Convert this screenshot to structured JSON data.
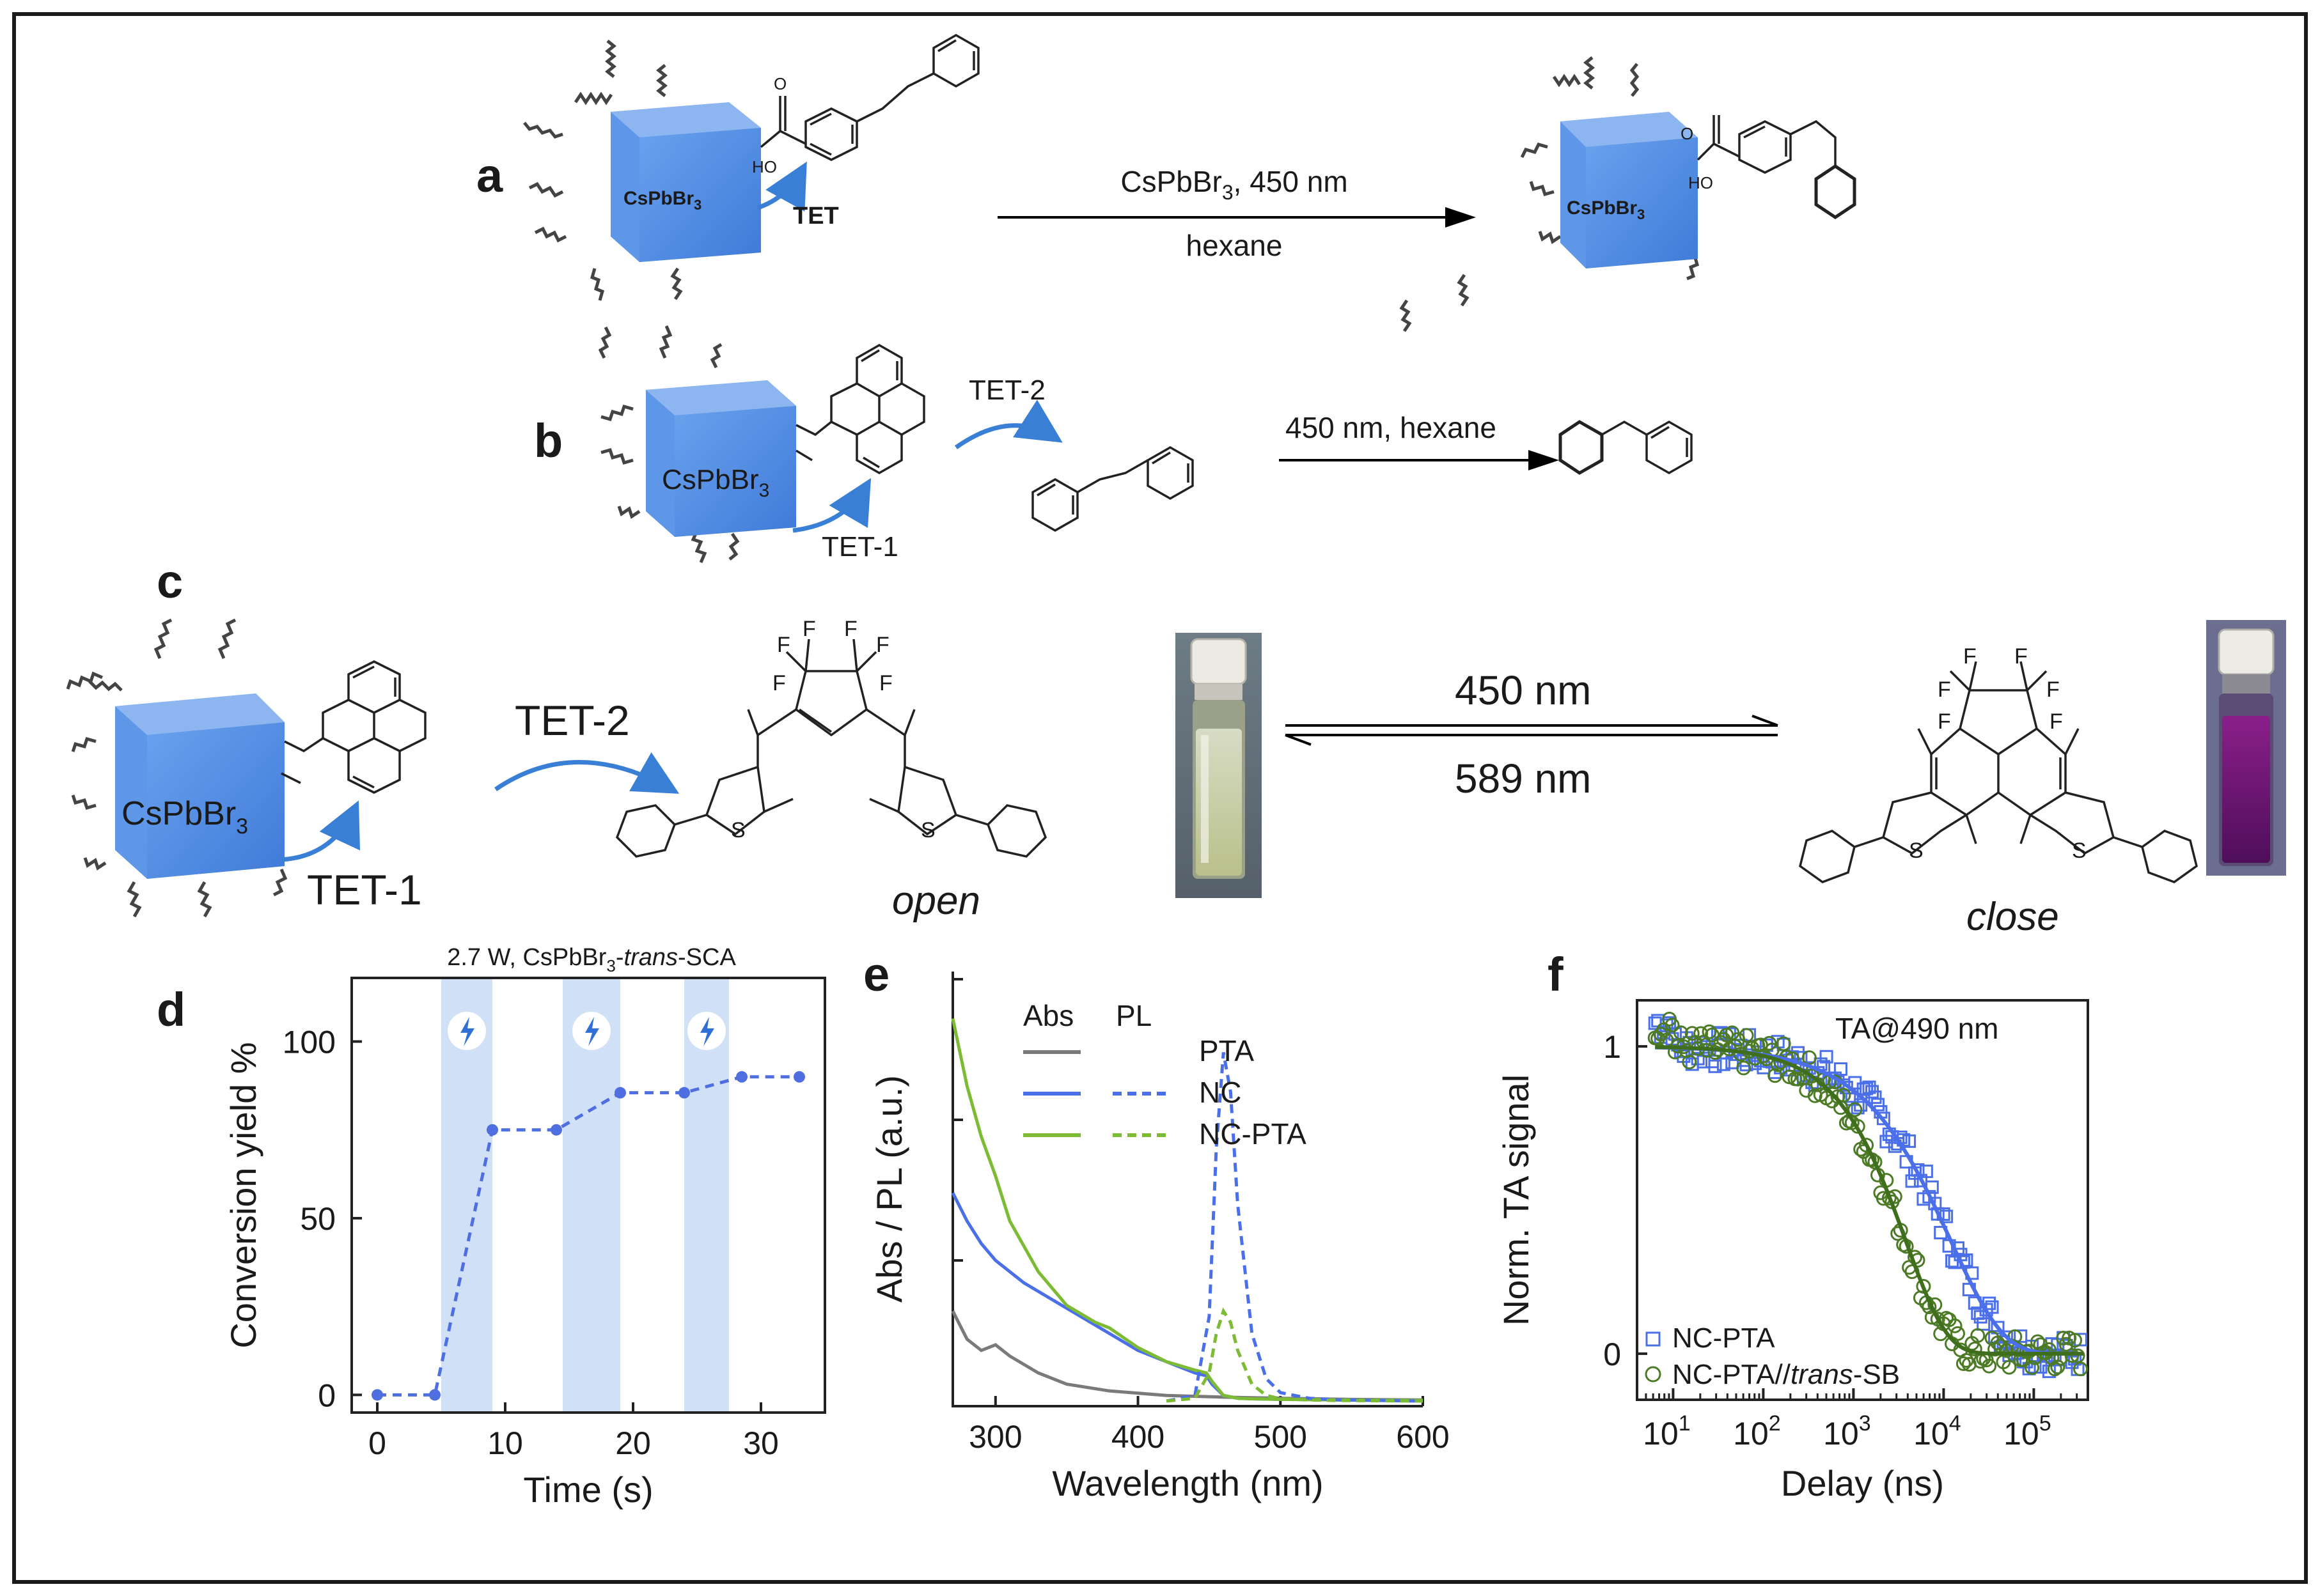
{
  "panels": {
    "a": {
      "label": "a",
      "nc": "CsPbBr",
      "nc_sub": "3",
      "tet": "TET",
      "ho": "HO",
      "o": "O",
      "cond_top": "CsPbBr",
      "cond_top_sub": "3",
      "cond_top_tail": ", 450 nm",
      "cond_bottom": "hexane",
      "product_nc": "CsPbBr",
      "product_nc_sub": "3",
      "product_ho": "HO",
      "product_o": "O"
    },
    "b": {
      "label": "b",
      "nc": "CsPbBr",
      "nc_sub": "3",
      "tet1": "TET-1",
      "tet2": "TET-2",
      "cond": "450 nm, hexane"
    },
    "c": {
      "label": "c",
      "nc": "CsPbBr",
      "nc_sub": "3",
      "tet1": "TET-1",
      "tet2": "TET-2",
      "f": "F",
      "s": "S",
      "forward": "450 nm",
      "backward": "589 nm",
      "open": "open",
      "close": "close",
      "forward_color": "#1f77b4",
      "backward_color": "#f08a3c"
    },
    "d": {
      "label": "d",
      "title_pre": "2.7 W, CsPbBr",
      "title_sub": "3",
      "title_mid": "-",
      "title_it": "trans",
      "title_post": "-SCA"
    },
    "e": {
      "label": "e"
    },
    "f": {
      "label": "f"
    }
  },
  "chart_data": [
    {
      "id": "d",
      "type": "line",
      "xlabel": "Time (s)",
      "ylabel": "Conversion yield %",
      "xlim": [
        -2,
        35
      ],
      "ylim": [
        -5,
        118
      ],
      "xticks": [
        0,
        10,
        20,
        30
      ],
      "yticks": [
        0,
        50,
        100
      ],
      "x": [
        0,
        4.5,
        9,
        14,
        19,
        24,
        28.5,
        33
      ],
      "y": [
        0,
        0,
        75,
        75,
        85.5,
        85.5,
        90,
        90
      ],
      "irradiation_windows": [
        [
          5,
          9
        ],
        [
          14.5,
          19
        ],
        [
          24,
          27.5
        ]
      ],
      "series_color": "#4f6fe0",
      "shade_color": "#cfe0f7"
    },
    {
      "id": "e",
      "type": "line",
      "xlabel": "Wavelength (nm)",
      "ylabel": "Abs / PL (a.u.)",
      "xlim": [
        270,
        600
      ],
      "xticks": [
        300,
        400,
        500,
        600
      ],
      "legend": {
        "abs_header": "Abs",
        "pl_header": "PL",
        "entries": [
          "PTA",
          "NC",
          "NC-PTA"
        ]
      },
      "series": [
        {
          "name": "PTA Abs",
          "color": "#7a7a7a",
          "dash": false,
          "x": [
            270,
            280,
            290,
            300,
            310,
            330,
            350,
            380,
            420,
            460,
            500,
            550,
            600
          ],
          "y": [
            0.16,
            0.11,
            0.09,
            0.1,
            0.08,
            0.05,
            0.03,
            0.018,
            0.01,
            0.007,
            0.005,
            0.003,
            0.002
          ]
        },
        {
          "name": "NC Abs",
          "color": "#4a6fe8",
          "dash": false,
          "x": [
            270,
            280,
            290,
            300,
            320,
            340,
            360,
            380,
            400,
            420,
            440,
            448,
            452,
            460,
            470,
            480,
            500,
            550,
            600
          ],
          "y": [
            0.37,
            0.32,
            0.28,
            0.25,
            0.21,
            0.18,
            0.15,
            0.12,
            0.09,
            0.07,
            0.05,
            0.045,
            0.03,
            0.01,
            0.005,
            0.004,
            0.003,
            0.002,
            0.001
          ]
        },
        {
          "name": "NC-PTA Abs",
          "color": "#7dbb34",
          "dash": false,
          "x": [
            270,
            280,
            290,
            300,
            310,
            330,
            350,
            370,
            380,
            400,
            420,
            440,
            448,
            452,
            460,
            470,
            480,
            500,
            550,
            600
          ],
          "y": [
            0.68,
            0.56,
            0.47,
            0.4,
            0.32,
            0.23,
            0.17,
            0.14,
            0.13,
            0.095,
            0.07,
            0.055,
            0.05,
            0.035,
            0.01,
            0.005,
            0.004,
            0.003,
            0.002,
            0.001
          ]
        },
        {
          "name": "NC PL",
          "color": "#4a6fe8",
          "dash": true,
          "x": [
            420,
            440,
            450,
            455,
            460,
            465,
            470,
            480,
            490,
            500,
            520,
            540,
            600
          ],
          "y": [
            0.0,
            0.01,
            0.15,
            0.45,
            0.62,
            0.55,
            0.35,
            0.12,
            0.04,
            0.015,
            0.005,
            0.002,
            0.0
          ]
        },
        {
          "name": "NC-PTA PL",
          "color": "#7dbb34",
          "dash": true,
          "x": [
            420,
            440,
            450,
            455,
            460,
            465,
            470,
            480,
            490,
            500,
            520,
            540,
            600
          ],
          "y": [
            0.0,
            0.005,
            0.05,
            0.12,
            0.16,
            0.14,
            0.09,
            0.03,
            0.01,
            0.004,
            0.002,
            0.001,
            0.0
          ]
        }
      ]
    },
    {
      "id": "f",
      "type": "scatter",
      "xlabel": "Delay (ns)",
      "ylabel": "Norm. TA signal",
      "xscale": "log",
      "xlim_log10": [
        0.6,
        5.6
      ],
      "ylim": [
        -0.15,
        1.15
      ],
      "yticks": [
        0,
        1
      ],
      "xticks_exp": [
        "1",
        "2",
        "3",
        "4",
        "5"
      ],
      "xtick_base": "10",
      "annotation": "TA@490 nm",
      "legend": [
        {
          "name": "NC-PTA",
          "marker": "square",
          "color": "#4a6fe8"
        },
        {
          "name_pre": "NC-PTA//",
          "name_it": "trans",
          "name_post": "-SB",
          "marker": "circle",
          "color": "#4c7a25"
        }
      ],
      "fits": [
        {
          "name": "NC-PTA fit",
          "color": "#4a6fe8",
          "tau_ns": 12000,
          "beta": 0.75
        },
        {
          "name": "NC-PTA//trans-SB fit",
          "color": "#3f6e1c",
          "tau_ns": 3800,
          "beta": 0.95
        }
      ]
    }
  ]
}
